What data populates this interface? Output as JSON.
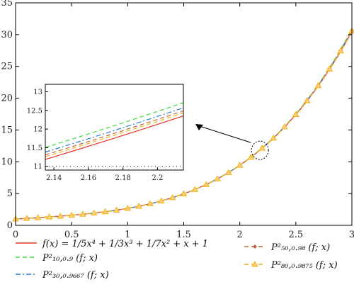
{
  "chart_data": {
    "type": "line",
    "title": "",
    "xlabel": "",
    "ylabel": "",
    "xlim": [
      0,
      3
    ],
    "ylim": [
      0,
      35
    ],
    "x_ticks": [
      "0",
      "0.5",
      "1",
      "1.5",
      "2",
      "2.5",
      "3"
    ],
    "y_ticks": [
      "0",
      "5",
      "10",
      "15",
      "20",
      "25",
      "30",
      "35"
    ],
    "grid": false,
    "legend_position": "bottom",
    "series": [
      {
        "name": "f(x) = 1/5x⁴ + 1/3x³ + 1/7x² + x + 1",
        "color": "#e8362c",
        "style": "solid",
        "marker": "none",
        "degree_factor": 1.0
      },
      {
        "name": "P²₁₀,₀.₉ (f; x)",
        "color": "#3ddc3d",
        "style": "dashed",
        "marker": "none",
        "degree_factor": 1.013
      },
      {
        "name": "P²₃₀,₀.₉₆₆₇ (f; x)",
        "color": "#2a7fd4",
        "style": "dashdot",
        "marker": "none",
        "degree_factor": 1.008
      },
      {
        "name": "P²₅₀,₀.₉₈ (f; x)",
        "color": "#c0673a",
        "style": "dashed",
        "marker": "diamond",
        "degree_factor": 1.005
      },
      {
        "name": "P²₈₀,₀.₉₈₇₅ (f; x)",
        "color": "#f5b21c",
        "style": "dashed",
        "marker": "triangle",
        "degree_factor": 1.003
      }
    ],
    "legend_entries": [
      {
        "label": "f(x) = 1/5x⁴ + 1/3x³ + 1/7x² + x + 1"
      },
      {
        "label": "P²₁₀,₀.₉ (f; x)"
      },
      {
        "label": "P²₃₀,₀.₉₆₆₇ (f; x)"
      },
      {
        "label": "P²₅₀,₀.₉₈ (f; x)"
      },
      {
        "label": "P²₈₀,₀.₉₈₇₅ (f; x)"
      }
    ],
    "inset": {
      "xlim": [
        2.135,
        2.215
      ],
      "ylim": [
        10.9,
        13.2
      ],
      "x_ticks": [
        "2.14",
        "2.16",
        "2.18",
        "2.2"
      ],
      "y_ticks": [
        "11",
        "11.5",
        "12",
        "12.5",
        "13"
      ],
      "reference_line": 11,
      "focus_point": [
        2.18,
        11.8
      ]
    }
  }
}
